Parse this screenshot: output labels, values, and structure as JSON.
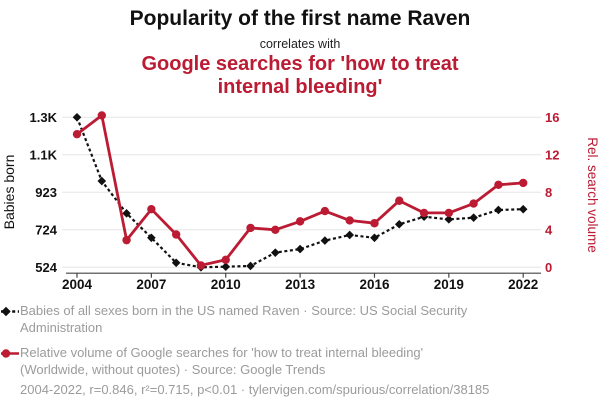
{
  "colors": {
    "red": "#bb1b33",
    "black": "#111111",
    "gray_text": "#9b9b9b",
    "gridline": "#e6e6e6",
    "axis_line": "#444444"
  },
  "header": {
    "title": "Popularity of the first name Raven",
    "subtitle": "correlates with",
    "red_title": "Google searches for 'how to treat internal bleeding'"
  },
  "chart_data": {
    "type": "line",
    "x": [
      2004,
      2005,
      2006,
      2007,
      2008,
      2009,
      2010,
      2011,
      2012,
      2013,
      2014,
      2015,
      2016,
      2017,
      2018,
      2019,
      2020,
      2021,
      2022
    ],
    "x_ticks": [
      2004,
      2007,
      2010,
      2013,
      2016,
      2019,
      2022
    ],
    "series": [
      {
        "id": "babies",
        "name": "Babies of all sexes born in the US named Raven",
        "axis": "left",
        "style": "dashed-diamond",
        "color": "#111111",
        "values": [
          1322,
          983,
          811,
          681,
          548,
          524,
          527,
          531,
          602,
          621,
          666,
          696,
          681,
          753,
          793,
          779,
          788,
          829,
          833
        ]
      },
      {
        "id": "searches",
        "name": "Relative volume of Google searches for 'how to treat internal bleeding'",
        "axis": "right",
        "style": "solid-circle",
        "color": "#bb1b33",
        "values": [
          14.2,
          16.2,
          2.9,
          6.2,
          3.5,
          0.2,
          0.8,
          4.2,
          4.0,
          4.9,
          6.0,
          5.0,
          4.7,
          7.1,
          5.8,
          5.8,
          6.8,
          8.8,
          9.0
        ]
      }
    ],
    "left_axis": {
      "label": "Babies born",
      "min": 524,
      "max": 1322,
      "tick_labels": [
        "524",
        "724",
        "923",
        "1.1K",
        "1.3K"
      ]
    },
    "right_axis": {
      "label": "Rel. search volume",
      "min": 0,
      "max": 16,
      "tick_labels": [
        "0",
        "4",
        "8",
        "12",
        "16"
      ]
    },
    "grid": "horizontal",
    "legend_position": "bottom"
  },
  "legend": [
    {
      "marker": "black-diamond-dashed",
      "lines": [
        "Babies of all sexes born in the US named Raven · Source: US Social Security",
        "Administration"
      ]
    },
    {
      "marker": "red-circle-solid",
      "lines": [
        "Relative volume of Google searches for 'how to treat internal bleeding'",
        "(Worldwide, without quotes) · Source: Google Trends"
      ]
    }
  ],
  "footer": {
    "text": "2004-2022, r=0.846, r²=0.715, p<0.01 · tylervigen.com/spurious/correlation/38185"
  }
}
